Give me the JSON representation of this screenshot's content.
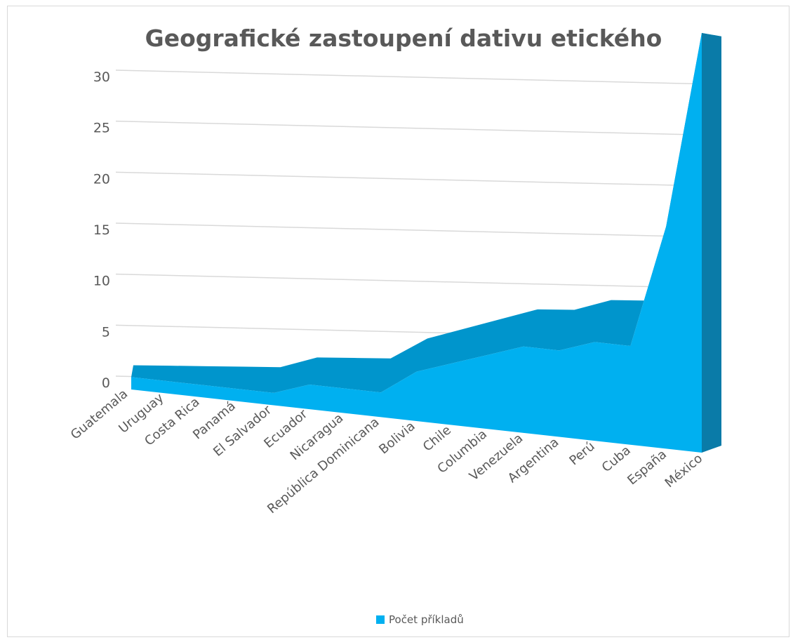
{
  "chart_data": {
    "type": "area",
    "title": "Geografické zastoupení dativu etického",
    "categories": [
      "Guatemala",
      "Uruguay",
      "Costa Rica",
      "Panamá",
      "El Salvador",
      "Ecuador",
      "Nicaragua",
      "República Dominicana",
      "Bolivia",
      "Chile",
      "Columbia",
      "Venezuela",
      "Argentina",
      "Perú",
      "Cuba",
      "España",
      "México"
    ],
    "series": [
      {
        "name": "Počet příkladů",
        "values": [
          1,
          1,
          1,
          1,
          1,
          2,
          2,
          2,
          4,
          5,
          6,
          7,
          7,
          8,
          8,
          18,
          34
        ]
      }
    ],
    "ylim": [
      0,
      30
    ],
    "yticks": [
      0,
      5,
      10,
      15,
      20,
      25,
      30
    ],
    "grid": true,
    "legend_position": "bottom",
    "colors": {
      "front": "#00b0f0",
      "top": "#0095cc",
      "side": "#0a7ba8",
      "grid": "#d9d9d9",
      "text": "#595959"
    }
  }
}
